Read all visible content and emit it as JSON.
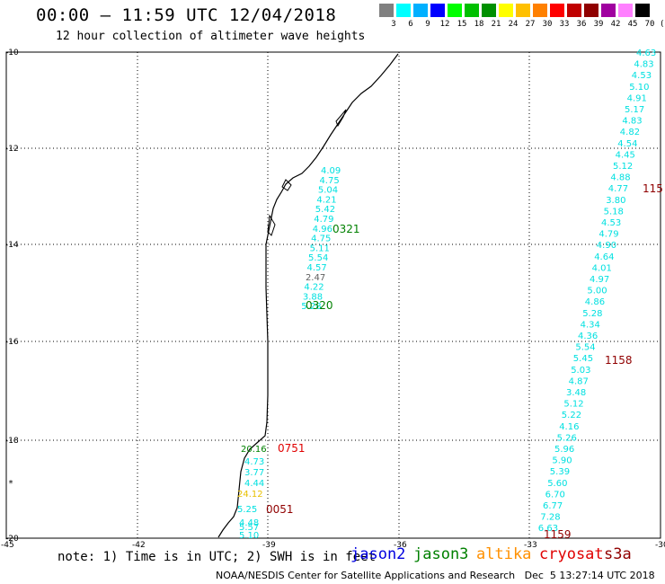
{
  "header": {
    "title": "00:00 – 11:59 UTC 12/04/2018",
    "subtitle": "12 hour collection of altimeter wave heights"
  },
  "color_scale": {
    "labels": [
      "3",
      "6",
      "9",
      "12",
      "15",
      "18",
      "21",
      "24",
      "27",
      "30",
      "33",
      "36",
      "39",
      "42",
      "45",
      "70",
      "(ft)"
    ],
    "colors": [
      "#808080",
      "#00ffff",
      "#00b0ff",
      "#0000ff",
      "#00ff00",
      "#00c000",
      "#009000",
      "#ffff00",
      "#ffc000",
      "#ff8000",
      "#ff0000",
      "#c00000",
      "#900000",
      "#a000a0",
      "#ff80ff",
      "#000000"
    ]
  },
  "axes": {
    "lat_ticks": [
      "-10",
      "-12",
      "-14",
      "-16",
      "-18",
      "-20"
    ],
    "lon_ticks": [
      "-45",
      "-42",
      "-39",
      "-36",
      "-33",
      "-30"
    ]
  },
  "track_left": {
    "values": [
      "4.09",
      "4.75",
      "5.04",
      "4.21",
      "5.42",
      "4.79",
      "4.96",
      "4.75",
      "5.11",
      "5.54",
      "4.57",
      "2.47",
      "4.22",
      "3.88",
      "5.28"
    ],
    "colors": [
      "#00e0e0",
      "#00e0e0",
      "#00e0e0",
      "#00e0e0",
      "#00e0e0",
      "#00e0e0",
      "#00e0e0",
      "#00e0e0",
      "#00e0e0",
      "#00e0e0",
      "#00e0e0",
      "#606060",
      "#00e0e0",
      "#00e0e0",
      "#00e0e0"
    ],
    "times": [
      {
        "text": "0321",
        "color": "#008000"
      },
      {
        "text": "0320",
        "color": "#008000"
      }
    ]
  },
  "track_bottom": {
    "values": [
      "20.16",
      "4.73",
      "3.77",
      "4.44",
      "24.12",
      "5.25",
      "4.48",
      "5.57",
      "5.10"
    ],
    "colors": [
      "#008000",
      "#00e0e0",
      "#00e0e0",
      "#00e0e0",
      "#e8c000",
      "#00e0e0",
      "#00e0e0",
      "#00e0e0",
      "#00e0e0"
    ],
    "times": [
      {
        "text": "0751",
        "color": "#e00000"
      },
      {
        "text": "0051",
        "color": "#900000"
      }
    ]
  },
  "track_right": {
    "values": [
      "4.63",
      "4.83",
      "4.53",
      "5.10",
      "4.91",
      "5.17",
      "4.83",
      "4.82",
      "4.54",
      "4.45",
      "5.12",
      "4.88",
      "4.77",
      "3.80",
      "5.18",
      "4.53",
      "4.79",
      "4.90",
      "4.64",
      "4.01",
      "4.97",
      "5.00",
      "4.86",
      "5.28",
      "4.34",
      "4.36",
      "5.54",
      "5.45",
      "5.03",
      "4.87",
      "3.48",
      "5.12",
      "5.22",
      "4.16",
      "5.26",
      "5.96",
      "5.90",
      "5.39",
      "5.60",
      "6.70",
      "6.77",
      "7.28",
      "6.63"
    ],
    "color": "#00e0e0",
    "times": [
      {
        "text": "115",
        "color": "#900000"
      },
      {
        "text": "1158",
        "color": "#900000"
      },
      {
        "text": "1159",
        "color": "#900000"
      }
    ]
  },
  "footer": {
    "note": "note: 1) Time is in UTC; 2) SWH is in feet",
    "legend": [
      {
        "text": "jason2",
        "color": "#0000e0"
      },
      {
        "text": "jason3",
        "color": "#008000"
      },
      {
        "text": "altika",
        "color": "#ff9000"
      },
      {
        "text": "cryosat",
        "color": "#e00000"
      },
      {
        "text": "s3a",
        "color": "#900000"
      }
    ],
    "credit": "NOAA/NESDIS Center for Satellite Applications and Research   Dec  5 13:27:14 UTC 2018"
  }
}
